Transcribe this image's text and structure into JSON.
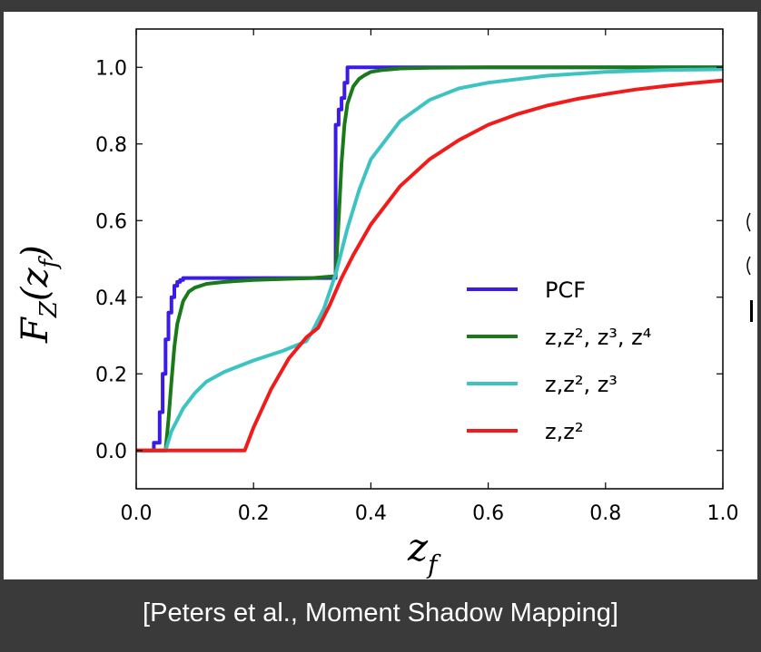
{
  "caption": "[Peters et al., Moment Shadow Mapping]",
  "colors": {
    "background": "#3a3a3a",
    "panel": "#ffffff",
    "caption_text": "#ffffff"
  },
  "chart_data": {
    "type": "line",
    "xlabel_base": "z",
    "xlabel_sub": "f",
    "ylabel_main": "F",
    "ylabel_sub": "Z",
    "ylabel_arg": "(z",
    "ylabel_arg_sub": "f",
    "ylabel_close": ")",
    "xlim": [
      0.0,
      1.0
    ],
    "ylim": [
      -0.1,
      1.1
    ],
    "xticks": [
      "0.0",
      "0.2",
      "0.4",
      "0.6",
      "0.8",
      "1.0"
    ],
    "yticks": [
      "0.0",
      "0.2",
      "0.4",
      "0.6",
      "0.8",
      "1.0"
    ],
    "grid": false,
    "legend_position": "right",
    "series": [
      {
        "name": "PCF",
        "color": "#3a1be8",
        "x": [
          0.0,
          0.03,
          0.03,
          0.04,
          0.04,
          0.045,
          0.045,
          0.05,
          0.05,
          0.055,
          0.055,
          0.06,
          0.06,
          0.065,
          0.065,
          0.07,
          0.07,
          0.075,
          0.075,
          0.08,
          0.08,
          0.34,
          0.34,
          0.345,
          0.345,
          0.35,
          0.35,
          0.355,
          0.355,
          0.36,
          0.36,
          1.0
        ],
        "y": [
          0.0,
          0.0,
          0.02,
          0.02,
          0.1,
          0.1,
          0.2,
          0.2,
          0.29,
          0.29,
          0.36,
          0.36,
          0.4,
          0.4,
          0.43,
          0.43,
          0.44,
          0.44,
          0.445,
          0.445,
          0.45,
          0.45,
          0.85,
          0.85,
          0.89,
          0.89,
          0.92,
          0.92,
          0.96,
          0.96,
          1.0,
          1.0
        ]
      },
      {
        "name": "z,z², z³, z⁴",
        "color": "#1a7a1a",
        "x": [
          0.0,
          0.05,
          0.055,
          0.06,
          0.065,
          0.07,
          0.08,
          0.09,
          0.1,
          0.12,
          0.15,
          0.2,
          0.3,
          0.34,
          0.345,
          0.35,
          0.355,
          0.36,
          0.37,
          0.38,
          0.39,
          0.4,
          0.42,
          0.45,
          0.5,
          0.6,
          0.8,
          1.0
        ],
        "y": [
          0.0,
          0.0,
          0.08,
          0.18,
          0.27,
          0.33,
          0.39,
          0.415,
          0.425,
          0.435,
          0.44,
          0.445,
          0.45,
          0.455,
          0.6,
          0.75,
          0.85,
          0.905,
          0.95,
          0.97,
          0.98,
          0.988,
          0.993,
          0.997,
          0.999,
          1.0,
          1.0,
          1.0
        ]
      },
      {
        "name": "z,z², z³",
        "color": "#3ec3c3",
        "x": [
          0.0,
          0.05,
          0.06,
          0.08,
          0.1,
          0.12,
          0.15,
          0.2,
          0.25,
          0.29,
          0.3,
          0.32,
          0.34,
          0.36,
          0.38,
          0.4,
          0.45,
          0.5,
          0.55,
          0.6,
          0.7,
          0.8,
          0.9,
          1.0
        ],
        "y": [
          0.0,
          0.0,
          0.05,
          0.11,
          0.15,
          0.18,
          0.205,
          0.235,
          0.26,
          0.285,
          0.31,
          0.37,
          0.46,
          0.58,
          0.68,
          0.76,
          0.86,
          0.915,
          0.945,
          0.96,
          0.978,
          0.988,
          0.993,
          0.995
        ]
      },
      {
        "name": "z,z²",
        "color": "#f01c1c",
        "x": [
          0.0,
          0.185,
          0.2,
          0.23,
          0.26,
          0.29,
          0.31,
          0.33,
          0.35,
          0.37,
          0.4,
          0.45,
          0.5,
          0.55,
          0.6,
          0.65,
          0.7,
          0.75,
          0.8,
          0.85,
          0.9,
          0.95,
          1.0
        ],
        "y": [
          0.0,
          0.0,
          0.06,
          0.16,
          0.24,
          0.295,
          0.32,
          0.38,
          0.45,
          0.51,
          0.59,
          0.69,
          0.76,
          0.81,
          0.85,
          0.878,
          0.9,
          0.917,
          0.93,
          0.942,
          0.951,
          0.959,
          0.966
        ]
      }
    ]
  }
}
